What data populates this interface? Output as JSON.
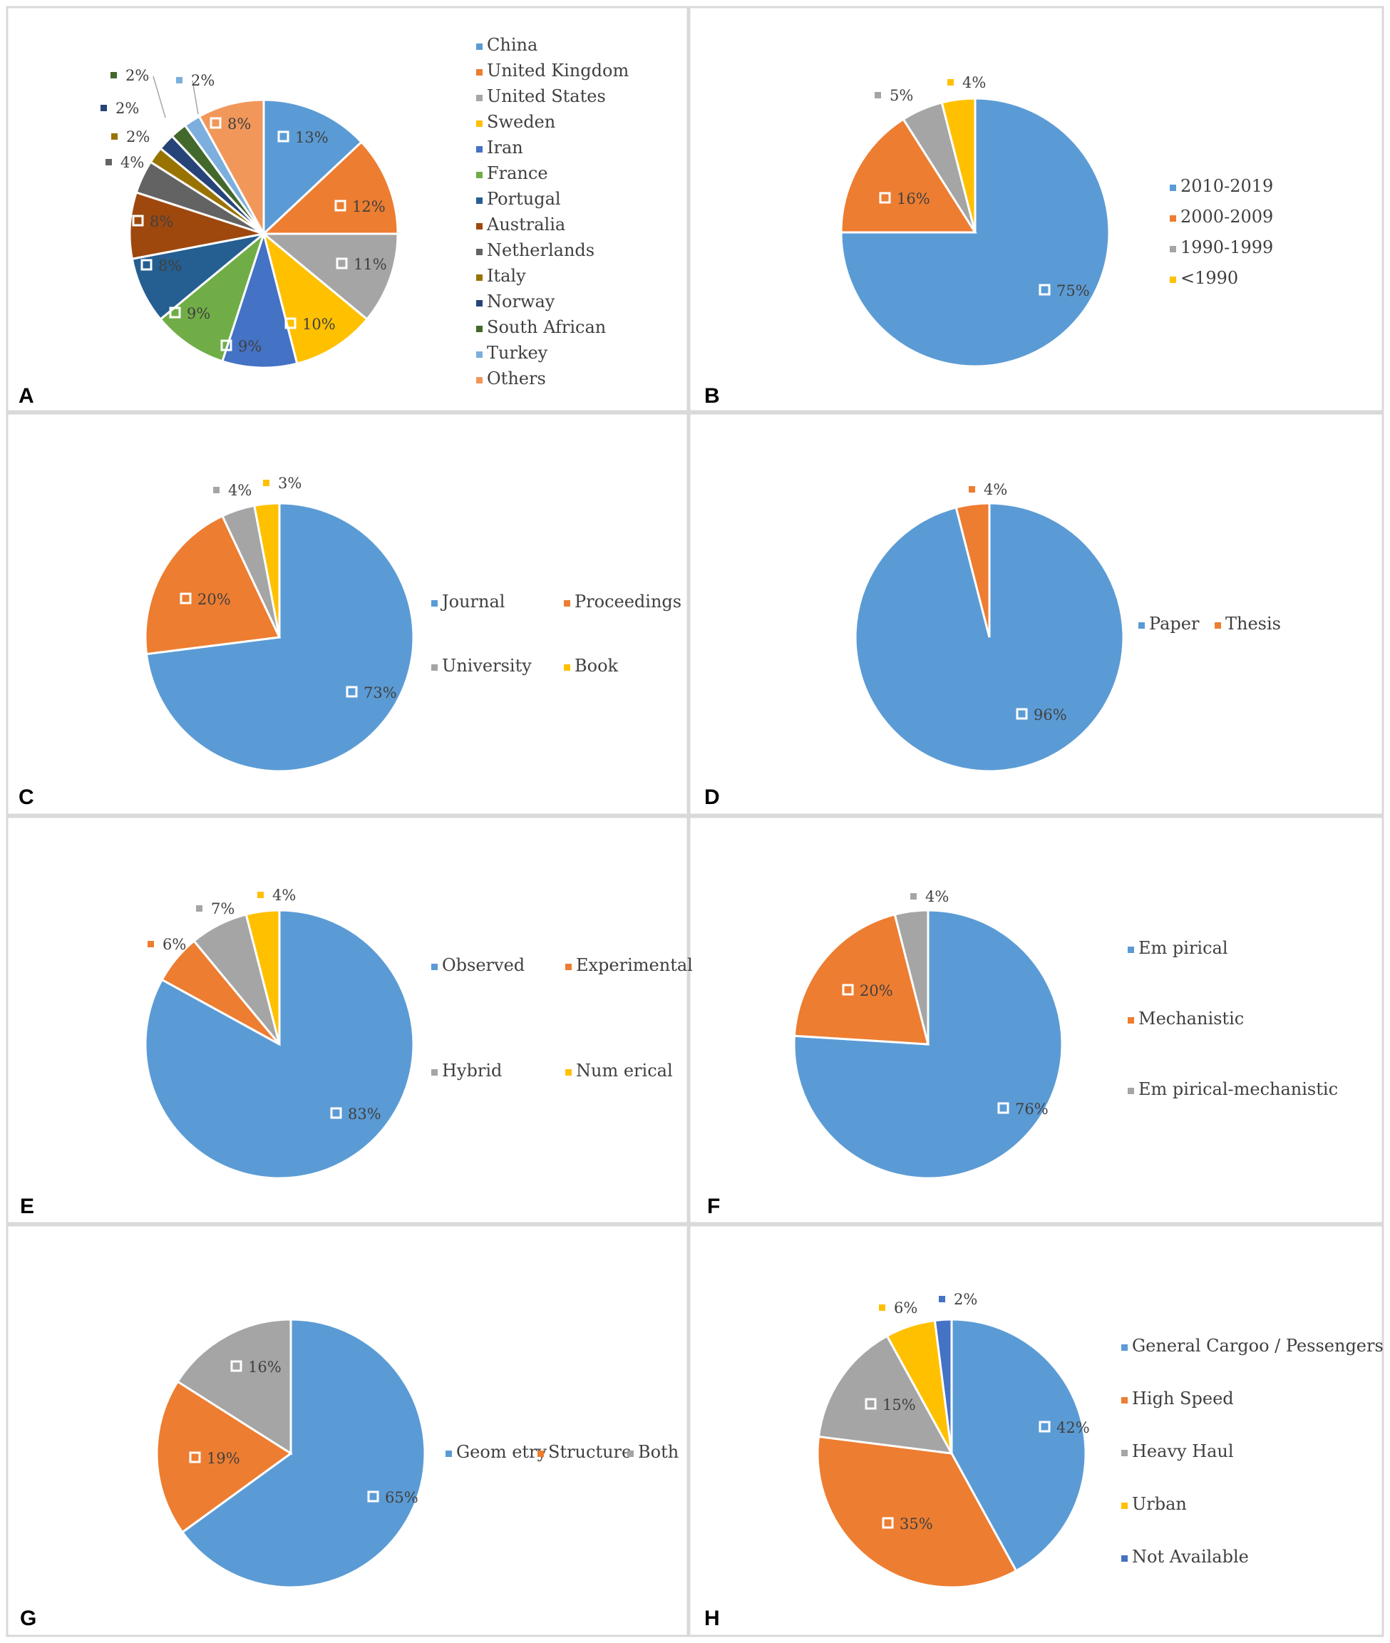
{
  "figure": {
    "panel_letters": [
      "A",
      "B",
      "C",
      "D",
      "E",
      "F",
      "G",
      "H"
    ]
  },
  "chart_data": [
    {
      "id": "A",
      "type": "pie",
      "title": "",
      "categories": [
        "China",
        "United Kingdom",
        "United States",
        "Sweden",
        "Iran",
        "France",
        "Portugal",
        "Australia",
        "Netherlands",
        "Italy",
        "Norway",
        "South African",
        "Turkey",
        "Others"
      ],
      "values": [
        13,
        12,
        11,
        10,
        9,
        9,
        8,
        8,
        4,
        2,
        2,
        2,
        2,
        8
      ],
      "data_labels": [
        "13%",
        "12%",
        "11%",
        "10%",
        "9%",
        "9%",
        "8%",
        "8%",
        "4%",
        "2%",
        "2%",
        "2%",
        "2%",
        "8%"
      ],
      "colors": [
        "#5b9bd5",
        "#ed7d31",
        "#a5a5a5",
        "#ffc000",
        "#4472c4",
        "#70ad47",
        "#255e91",
        "#9e480e",
        "#636363",
        "#997300",
        "#264478",
        "#43682b",
        "#7cafdd",
        "#f1975a"
      ],
      "legend_position": "right"
    },
    {
      "id": "B",
      "type": "pie",
      "title": "",
      "categories": [
        "2010-2019",
        "2000-2009",
        "1990-1999",
        "<1990"
      ],
      "values": [
        75,
        16,
        5,
        4
      ],
      "data_labels": [
        "75%",
        "16%",
        "5%",
        "4%"
      ],
      "colors": [
        "#5b9bd5",
        "#ed7d31",
        "#a5a5a5",
        "#ffc000"
      ],
      "legend_position": "right"
    },
    {
      "id": "C",
      "type": "pie",
      "title": "",
      "categories": [
        "Journal",
        "Proceedings",
        "University",
        "Book"
      ],
      "values": [
        73,
        20,
        4,
        3
      ],
      "data_labels": [
        "73%",
        "20%",
        "4%",
        "3%"
      ],
      "colors": [
        "#5b9bd5",
        "#ed7d31",
        "#a5a5a5",
        "#ffc000"
      ],
      "legend_position": "right"
    },
    {
      "id": "D",
      "type": "pie",
      "title": "",
      "categories": [
        "Paper",
        "Thesis"
      ],
      "values": [
        96,
        4
      ],
      "data_labels": [
        "96%",
        "4%"
      ],
      "colors": [
        "#5b9bd5",
        "#ed7d31"
      ],
      "legend_position": "right"
    },
    {
      "id": "E",
      "type": "pie",
      "title": "",
      "categories": [
        "Observed",
        "Experimental",
        "Hybrid",
        "Num erical"
      ],
      "values": [
        83,
        6,
        7,
        4
      ],
      "data_labels": [
        "83%",
        "6%",
        "7%",
        "4%"
      ],
      "colors": [
        "#5b9bd5",
        "#ed7d31",
        "#a5a5a5",
        "#ffc000"
      ],
      "legend_position": "right"
    },
    {
      "id": "F",
      "type": "pie",
      "title": "",
      "categories": [
        "Em pirical",
        "Mechanistic",
        "Em pirical-mechanistic"
      ],
      "values": [
        76,
        20,
        4
      ],
      "data_labels": [
        "76%",
        "20%",
        "4%"
      ],
      "colors": [
        "#5b9bd5",
        "#ed7d31",
        "#a5a5a5"
      ],
      "legend_position": "right"
    },
    {
      "id": "G",
      "type": "pie",
      "title": "",
      "categories": [
        "Geom etry",
        "Structure",
        "Both"
      ],
      "values": [
        65,
        19,
        16
      ],
      "data_labels": [
        "65%",
        "19%",
        "16%"
      ],
      "colors": [
        "#5b9bd5",
        "#ed7d31",
        "#a5a5a5"
      ],
      "legend_position": "right"
    },
    {
      "id": "H",
      "type": "pie",
      "title": "",
      "categories": [
        "General Cargoo / Pessengers",
        "High Speed",
        "Heavy Haul",
        "Urban",
        "Not Available"
      ],
      "values": [
        42,
        35,
        15,
        6,
        2
      ],
      "data_labels": [
        "42%",
        "35%",
        "15%",
        "6%",
        "2%"
      ],
      "colors": [
        "#5b9bd5",
        "#ed7d31",
        "#a5a5a5",
        "#ffc000",
        "#4472c4"
      ],
      "legend_position": "right"
    }
  ]
}
